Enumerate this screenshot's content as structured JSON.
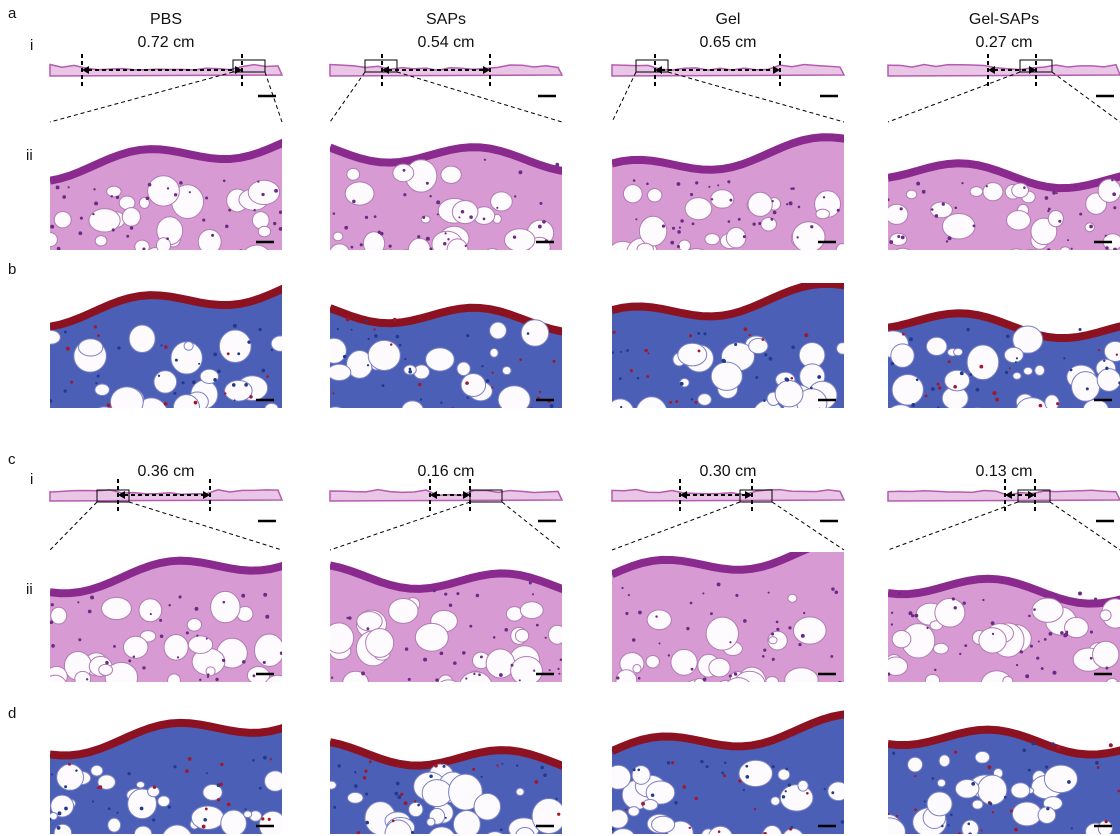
{
  "labels": {
    "a": "a",
    "a_i": "i",
    "a_ii": "ii",
    "b": "b",
    "c": "c",
    "c_i": "i",
    "c_ii": "ii",
    "d": "d"
  },
  "columns": [
    {
      "group": "PBS",
      "length_a": "0.72 cm",
      "length_c": "0.36 cm"
    },
    {
      "group": "SAPs",
      "length_a": "0.54 cm",
      "length_c": "0.16 cm"
    },
    {
      "group": "Gel",
      "length_a": "0.65 cm",
      "length_c": "0.30 cm"
    },
    {
      "group": "Gel-SAPs",
      "length_a": "0.27 cm",
      "length_c": "0.13 cm"
    }
  ]
}
